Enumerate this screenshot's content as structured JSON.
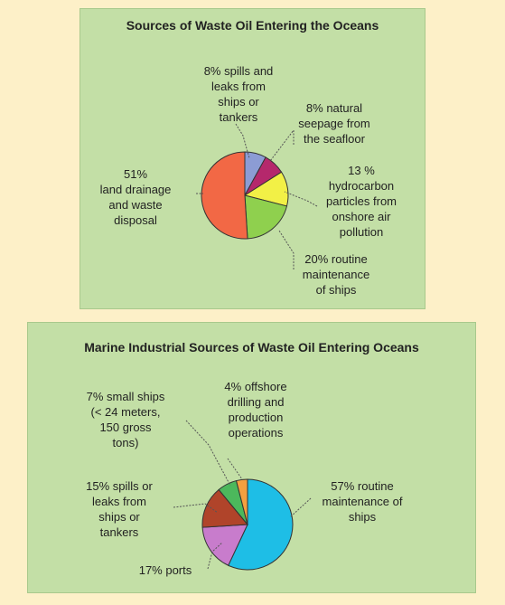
{
  "chart_data": [
    {
      "type": "pie",
      "title": "Sources of Waste Oil Entering the Oceans",
      "slices": [
        {
          "label": "8% spills and\nleaks from\nships or\ntankers",
          "value": 8,
          "color": "#8c9cd4"
        },
        {
          "label": "8% natural\nseepage from\nthe seafloor",
          "value": 8,
          "color": "#b5286c"
        },
        {
          "label": "13 %\nhydrocarbon\nparticles from\nonshore air\npollution",
          "value": 13,
          "color": "#f2f046"
        },
        {
          "label": "20% routine\nmaintenance\nof ships",
          "value": 20,
          "color": "#8fd04e"
        },
        {
          "label": "51%\nland drainage\nand waste\ndisposal",
          "value": 51,
          "color": "#f26845"
        }
      ]
    },
    {
      "type": "pie",
      "title": "Marine Industrial Sources of Waste Oil Entering Oceans",
      "slices": [
        {
          "label": "57% routine\nmaintenance of\nships",
          "value": 57,
          "color": "#1ebee6"
        },
        {
          "label": "17% ports",
          "value": 17,
          "color": "#c87ccc"
        },
        {
          "label": "15% spills or\nleaks from\nships or\ntankers",
          "value": 15,
          "color": "#b0442a"
        },
        {
          "label": "7% small ships\n(< 24 meters,\n150 gross\ntons)",
          "value": 7,
          "color": "#4cb85c"
        },
        {
          "label": "4% offshore\ndrilling and\nproduction\noperations",
          "value": 4,
          "color": "#f5a040"
        }
      ]
    }
  ]
}
